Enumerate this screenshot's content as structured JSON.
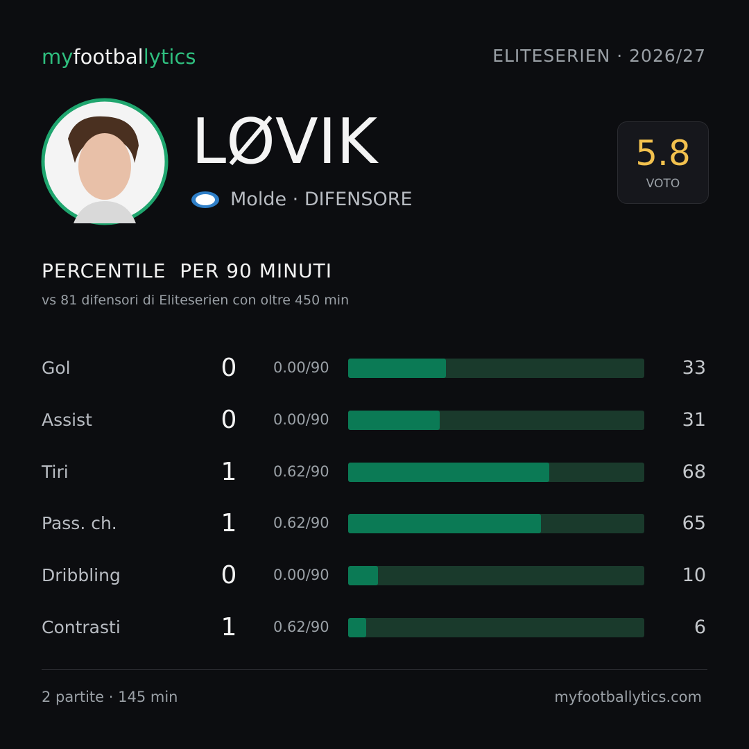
{
  "header": {
    "logo": [
      "my",
      "footbal",
      "lytics"
    ],
    "league": "ELITESERIEN",
    "season": "· 2026/27"
  },
  "player": {
    "name": "LØVIK",
    "club_role": "Molde · DIFENSORE",
    "rating": "5.8",
    "rating_label": "VOTO"
  },
  "section": {
    "title": "PERCENTILE  PER 90 MINUTI",
    "subtitle": "vs 81 difensori di Eliteserien con oltre 450 min"
  },
  "stats": [
    {
      "label": "Gol",
      "count": "0",
      "per90": "0.00/90",
      "percentile": 33
    },
    {
      "label": "Assist",
      "count": "0",
      "per90": "0.00/90",
      "percentile": 31
    },
    {
      "label": "Tiri",
      "count": "1",
      "per90": "0.62/90",
      "percentile": 68
    },
    {
      "label": "Pass. ch.",
      "count": "1",
      "per90": "0.62/90",
      "percentile": 65
    },
    {
      "label": "Dribbling",
      "count": "0",
      "per90": "0.00/90",
      "percentile": 10
    },
    {
      "label": "Contrasti",
      "count": "1",
      "per90": "0.62/90",
      "percentile": 6
    }
  ],
  "footer": {
    "summary": "2 partite · 145 min",
    "site": "myfootballytics.com"
  }
}
